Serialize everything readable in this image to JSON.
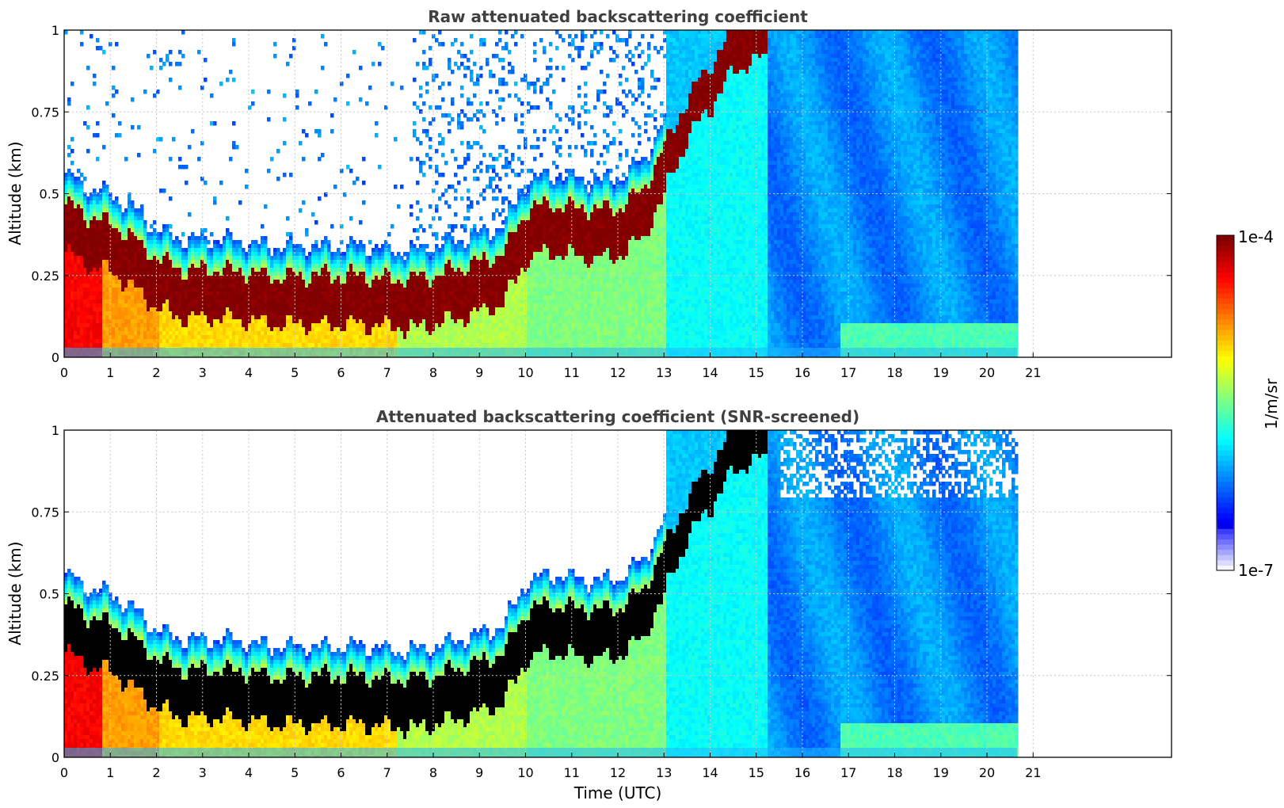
{
  "chart_data": [
    {
      "type": "heatmap",
      "title": "Raw attenuated backscattering coefficient",
      "xlabel": "",
      "ylabel": "Altitude (km)",
      "xlim": [
        0,
        24
      ],
      "ylim": [
        0,
        1
      ],
      "x_ticks": [
        "0",
        "1",
        "2",
        "3",
        "4",
        "5",
        "6",
        "7",
        "8",
        "9",
        "10",
        "11",
        "12",
        "13",
        "14",
        "15",
        "16",
        "17",
        "18",
        "19",
        "20",
        "21"
      ],
      "y_ticks": [
        "0",
        "0.25",
        "0.5",
        "0.75",
        "1"
      ],
      "data_end_hour": 20.65,
      "grid": true,
      "screened": false
    },
    {
      "type": "heatmap",
      "title": "Attenuated backscattering coefficient (SNR-screened)",
      "xlabel": "Time (UTC)",
      "ylabel": "Altitude (km)",
      "xlim": [
        0,
        24
      ],
      "ylim": [
        0,
        1
      ],
      "x_ticks": [
        "0",
        "1",
        "2",
        "3",
        "4",
        "5",
        "6",
        "7",
        "8",
        "9",
        "10",
        "11",
        "12",
        "13",
        "14",
        "15",
        "16",
        "17",
        "18",
        "19",
        "20",
        "21"
      ],
      "y_ticks": [
        "0",
        "0.25",
        "0.5",
        "0.75",
        "1"
      ],
      "data_end_hour": 20.65,
      "grid": true,
      "screened": true
    }
  ],
  "colorbar": {
    "label": "1/m/sr",
    "max_label": "1e-4",
    "min_label": "1e-7",
    "colormap": "jet"
  },
  "boundary_layer_height_km": [
    {
      "t": 0,
      "h": 0.42
    },
    {
      "t": 0.5,
      "h": 0.38
    },
    {
      "t": 1,
      "h": 0.36
    },
    {
      "t": 1.5,
      "h": 0.31
    },
    {
      "t": 2,
      "h": 0.25
    },
    {
      "t": 2.5,
      "h": 0.22
    },
    {
      "t": 3,
      "h": 0.22
    },
    {
      "t": 3.5,
      "h": 0.22
    },
    {
      "t": 4,
      "h": 0.21
    },
    {
      "t": 4.5,
      "h": 0.2
    },
    {
      "t": 5,
      "h": 0.2
    },
    {
      "t": 5.5,
      "h": 0.2
    },
    {
      "t": 6,
      "h": 0.2
    },
    {
      "t": 6.5,
      "h": 0.2
    },
    {
      "t": 7,
      "h": 0.19
    },
    {
      "t": 7.5,
      "h": 0.19
    },
    {
      "t": 8,
      "h": 0.2
    },
    {
      "t": 8.5,
      "h": 0.22
    },
    {
      "t": 9,
      "h": 0.24
    },
    {
      "t": 9.5,
      "h": 0.27
    },
    {
      "t": 10,
      "h": 0.4
    },
    {
      "t": 10.5,
      "h": 0.42
    },
    {
      "t": 11,
      "h": 0.41
    },
    {
      "t": 11.5,
      "h": 0.4
    },
    {
      "t": 12,
      "h": 0.41
    },
    {
      "t": 12.5,
      "h": 0.46
    },
    {
      "t": 13,
      "h": 0.6
    },
    {
      "t": 13.5,
      "h": 0.75
    },
    {
      "t": 14,
      "h": 0.85
    },
    {
      "t": 14.5,
      "h": 0.96
    },
    {
      "t": 15,
      "h": 0.99
    }
  ],
  "colors": {
    "jet_stops": [
      "#00007f",
      "#0000ff",
      "#007fff",
      "#00ffff",
      "#7fff7f",
      "#ffff00",
      "#ff7f00",
      "#ff0000",
      "#7f0000"
    ],
    "screened_saturation": "#000000",
    "grid": "#c8c8c8",
    "title_text": "#404040"
  }
}
